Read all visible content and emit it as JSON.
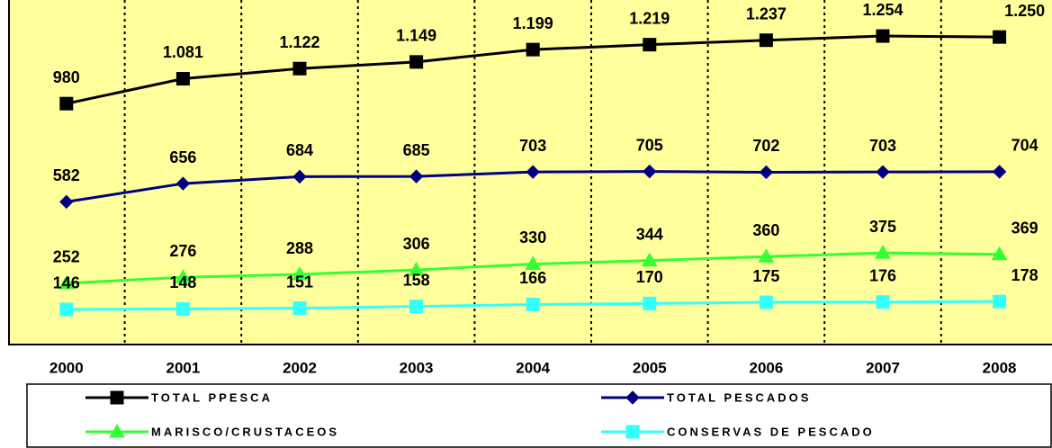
{
  "chart_data": {
    "type": "line",
    "categories": [
      "2000",
      "2001",
      "2002",
      "2003",
      "2004",
      "2005",
      "2006",
      "2007",
      "2008"
    ],
    "ylim": [
      0,
      1400
    ],
    "background": "#ffff9c",
    "series": [
      {
        "name": "TOTAL PPESCA",
        "color": "#000000",
        "marker": "square",
        "values": [
          980,
          1081,
          1122,
          1149,
          1199,
          1219,
          1237,
          1254,
          1250
        ],
        "value_labels": [
          "980",
          "1.081",
          "1.122",
          "1.149",
          "1.199",
          "1.219",
          "1.237",
          "1.254",
          "1.250"
        ]
      },
      {
        "name": "TOTAL PESCADOS",
        "color": "#000080",
        "marker": "diamond",
        "values": [
          582,
          656,
          684,
          685,
          703,
          705,
          702,
          703,
          704
        ]
      },
      {
        "name": "MARISCO/CRUSTACEOS",
        "color": "#33ff33",
        "marker": "triangle",
        "values": [
          252,
          276,
          288,
          306,
          330,
          344,
          360,
          375,
          369
        ]
      },
      {
        "name": "CONSERVAS DE PESCADO",
        "color": "#33ffff",
        "marker": "square",
        "values": [
          146,
          148,
          151,
          158,
          166,
          170,
          175,
          176,
          178
        ]
      }
    ]
  }
}
